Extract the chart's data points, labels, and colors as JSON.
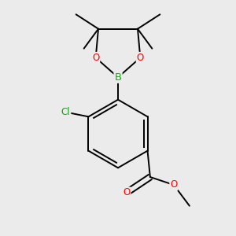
{
  "bg_color": "#ebebeb",
  "bond_color": "#000000",
  "bond_width": 1.4,
  "atom_colors": {
    "B": "#00bb00",
    "O": "#ff0000",
    "Cl": "#00aa00",
    "C": "#000000"
  },
  "font_size_atom": 8.5,
  "fig_width": 3.0,
  "fig_height": 3.0,
  "dpi": 100
}
